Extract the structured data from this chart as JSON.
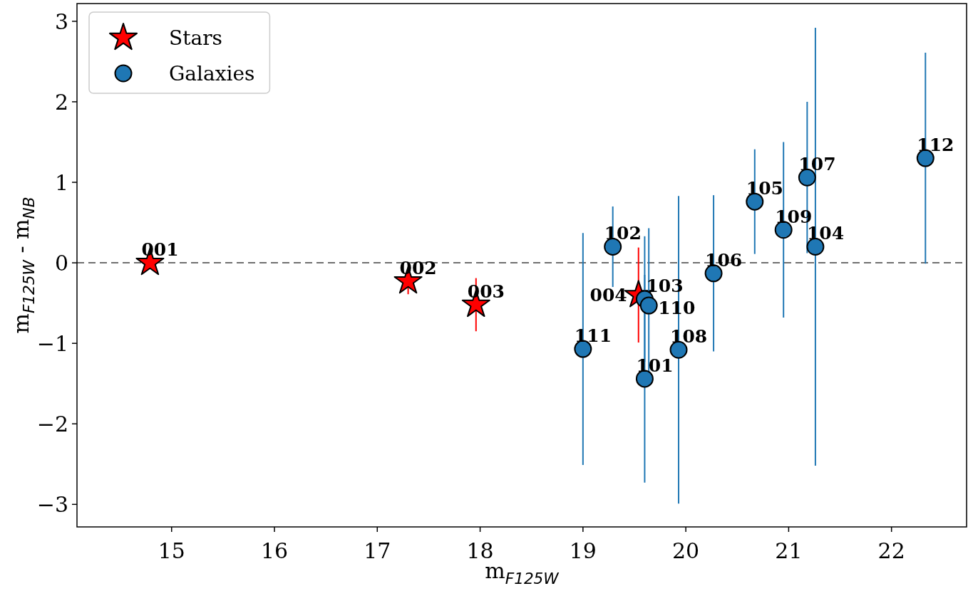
{
  "chart_data": {
    "type": "scatter",
    "xlabel": "m$_{F125W}$",
    "ylabel": "m$_{F125W}$ - m$_{NB}$",
    "xlim": [
      14.08,
      22.73
    ],
    "ylim": [
      -3.28,
      3.22
    ],
    "xticks": [
      15,
      16,
      17,
      18,
      19,
      20,
      21,
      22
    ],
    "yticks": [
      {
        "value": -3,
        "label": "−3"
      },
      {
        "value": -2,
        "label": "−2"
      },
      {
        "value": -1,
        "label": "−1"
      },
      0,
      1,
      2,
      3
    ],
    "legend": "top left",
    "series": [
      {
        "name": "Stars",
        "color": "#ff0000",
        "marker": "star",
        "x": [
          14.79,
          17.3,
          17.96,
          19.54
        ],
        "values": [
          0,
          -0.23,
          -0.52,
          -0.4
        ],
        "errors": [
          null,
          0.16,
          0.33,
          0.59
        ]
      },
      {
        "name": "Galaxies",
        "color": "#1f77b4",
        "marker": "circle",
        "x": [
          19.6,
          19.29,
          19.6,
          21.26,
          20.67,
          20.27,
          21.18,
          19.93,
          20.95,
          19.64,
          19.0,
          22.33
        ],
        "values": [
          -1.44,
          0.2,
          -0.45,
          0.2,
          0.76,
          -0.13,
          1.06,
          -1.08,
          0.41,
          -0.53,
          -1.07,
          1.3
        ],
        "errors": [
          1.29,
          0.5,
          0.78,
          2.72,
          0.65,
          0.97,
          0.94,
          1.91,
          1.09,
          0.96,
          1.44,
          1.31
        ]
      }
    ],
    "ref_lines": [
      {
        "axis": "y",
        "value": 0,
        "color": "#707070",
        "line_style": "dashed"
      }
    ],
    "annotations": [
      {
        "text": "001",
        "x": 14.79,
        "y": 0
      },
      {
        "text": "002",
        "x": 17.3,
        "y": -0.23
      },
      {
        "text": "003",
        "x": 17.96,
        "y": -0.52
      },
      {
        "text": "004",
        "x": 19.54,
        "y": -0.4
      },
      {
        "text": "101",
        "x": 19.6,
        "y": -1.44
      },
      {
        "text": "102",
        "x": 19.29,
        "y": 0.2
      },
      {
        "text": "103",
        "x": 19.6,
        "y": -0.45
      },
      {
        "text": "104",
        "x": 21.26,
        "y": 0.2
      },
      {
        "text": "105",
        "x": 20.67,
        "y": 0.76
      },
      {
        "text": "106",
        "x": 20.27,
        "y": -0.13
      },
      {
        "text": "107",
        "x": 21.18,
        "y": 1.06
      },
      {
        "text": "108",
        "x": 19.93,
        "y": -1.08
      },
      {
        "text": "109",
        "x": 20.95,
        "y": 0.41
      },
      {
        "text": "110",
        "x": 19.64,
        "y": -0.53
      },
      {
        "text": "111",
        "x": 19.0,
        "y": -1.07
      },
      {
        "text": "112",
        "x": 22.33,
        "y": 1.3
      }
    ]
  }
}
